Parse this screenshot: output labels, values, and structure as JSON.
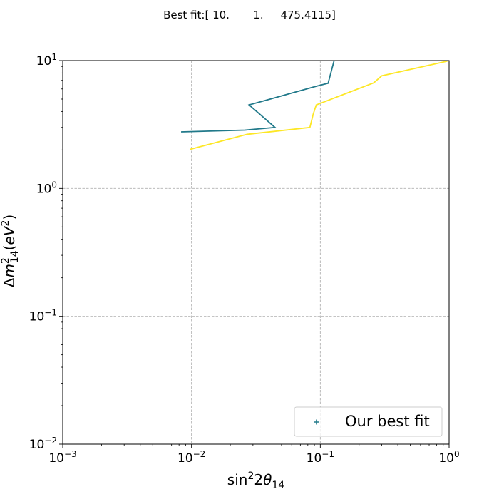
{
  "chart_data": {
    "type": "line",
    "title": "Best fit:[ 10.       1.     475.4115]",
    "xlabel": "sin²2θ₁₄",
    "ylabel": "Δm²₁₄(eV²)",
    "xscale": "log",
    "yscale": "log",
    "xlim": [
      0.001,
      1
    ],
    "ylim": [
      0.01,
      10
    ],
    "grid": true,
    "legend_position": "lower right",
    "x_ticks": [
      {
        "value": 0.001,
        "base": "10",
        "exp": "−3"
      },
      {
        "value": 0.01,
        "base": "10",
        "exp": "−2"
      },
      {
        "value": 0.1,
        "base": "10",
        "exp": "−1"
      },
      {
        "value": 1,
        "base": "10",
        "exp": "0"
      }
    ],
    "y_ticks": [
      {
        "value": 0.01,
        "base": "10",
        "exp": "−2"
      },
      {
        "value": 0.1,
        "base": "10",
        "exp": "−1"
      },
      {
        "value": 1,
        "base": "10",
        "exp": "0"
      },
      {
        "value": 10,
        "base": "10",
        "exp": "1"
      }
    ],
    "series": [
      {
        "color": "#21798a",
        "points": [
          [
            0.0083,
            2.77
          ],
          [
            0.026,
            2.86
          ],
          [
            0.0445,
            3.0
          ],
          [
            0.028,
            4.5
          ],
          [
            0.093,
            6.3
          ],
          [
            0.115,
            6.65
          ],
          [
            0.128,
            10.0
          ]
        ]
      },
      {
        "color": "#fde725",
        "points": [
          [
            0.0097,
            2.02
          ],
          [
            0.027,
            2.65
          ],
          [
            0.083,
            3.0
          ],
          [
            0.088,
            3.8
          ],
          [
            0.093,
            4.5
          ],
          [
            0.26,
            6.7
          ],
          [
            0.3,
            7.6
          ],
          [
            0.97,
            9.9
          ]
        ]
      },
      {
        "name": "Our best fit",
        "type": "scatter",
        "marker": "+",
        "color": "#21798a",
        "points": []
      }
    ]
  }
}
